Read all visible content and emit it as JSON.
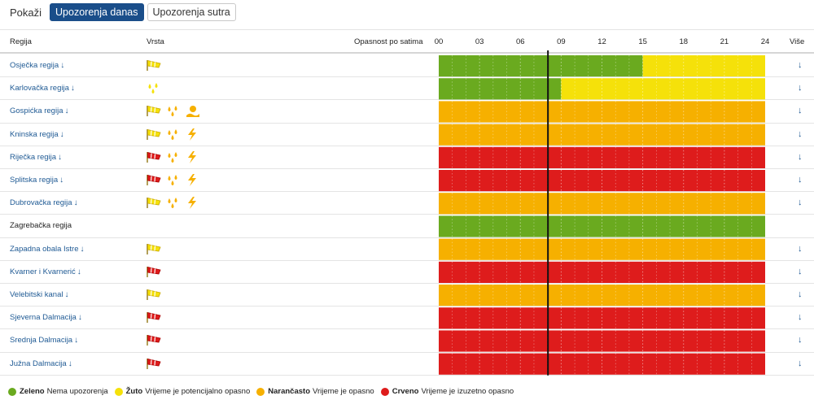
{
  "controls": {
    "show_label": "Pokaži",
    "tabs": [
      {
        "label": "Upozorenja danas",
        "active": true
      },
      {
        "label": "Upozorenja sutra",
        "active": false
      }
    ]
  },
  "header": {
    "region": "Regija",
    "type": "Vrsta",
    "hazard_by_hour": "Opasnost po satima",
    "more": "Više",
    "hour_ticks": [
      "00",
      "03",
      "06",
      "09",
      "12",
      "15",
      "18",
      "21",
      "24"
    ]
  },
  "colors": {
    "green": "#6aaa1f",
    "yellow": "#f5e10a",
    "orange": "#f6b000",
    "red": "#de1c1c",
    "link": "#1f5a94",
    "active_tab": "#1a4e8a"
  },
  "current_hour": 8,
  "rows": [
    {
      "name": "Osječka regija",
      "link": true,
      "icons": [
        "wind-yellow"
      ],
      "segments": [
        {
          "from": 0,
          "to": 15,
          "level": "green"
        },
        {
          "from": 15,
          "to": 24,
          "level": "yellow"
        }
      ]
    },
    {
      "name": "Karlovačka regija",
      "link": true,
      "icons": [
        "rain-yellow"
      ],
      "segments": [
        {
          "from": 0,
          "to": 9,
          "level": "green"
        },
        {
          "from": 9,
          "to": 24,
          "level": "yellow"
        }
      ]
    },
    {
      "name": "Gospićka regija",
      "link": true,
      "icons": [
        "wind-yellow",
        "rain-orange",
        "heat-orange"
      ],
      "segments": [
        {
          "from": 0,
          "to": 24,
          "level": "orange"
        }
      ]
    },
    {
      "name": "Kninska regija",
      "link": true,
      "icons": [
        "wind-yellow",
        "rain-orange",
        "thunder-orange"
      ],
      "segments": [
        {
          "from": 0,
          "to": 24,
          "level": "orange"
        }
      ]
    },
    {
      "name": "Riječka regija",
      "link": true,
      "icons": [
        "wind-red",
        "rain-orange",
        "thunder-orange"
      ],
      "segments": [
        {
          "from": 0,
          "to": 24,
          "level": "red"
        }
      ]
    },
    {
      "name": "Splitska regija",
      "link": true,
      "icons": [
        "wind-red",
        "rain-orange",
        "thunder-orange"
      ],
      "segments": [
        {
          "from": 0,
          "to": 24,
          "level": "red"
        }
      ]
    },
    {
      "name": "Dubrovačka regija",
      "link": true,
      "icons": [
        "wind-yellow",
        "rain-orange",
        "thunder-orange"
      ],
      "segments": [
        {
          "from": 0,
          "to": 24,
          "level": "orange"
        }
      ]
    },
    {
      "name": "Zagrebačka regija",
      "link": false,
      "icons": [],
      "segments": [
        {
          "from": 0,
          "to": 24,
          "level": "green"
        }
      ]
    },
    {
      "name": "Zapadna obala Istre",
      "link": true,
      "icons": [
        "wind-yellow"
      ],
      "segments": [
        {
          "from": 0,
          "to": 24,
          "level": "orange"
        }
      ]
    },
    {
      "name": "Kvarner i Kvarnerić",
      "link": true,
      "icons": [
        "wind-red"
      ],
      "segments": [
        {
          "from": 0,
          "to": 24,
          "level": "red"
        }
      ]
    },
    {
      "name": "Velebitski kanal",
      "link": true,
      "icons": [
        "wind-yellow"
      ],
      "segments": [
        {
          "from": 0,
          "to": 24,
          "level": "orange"
        }
      ]
    },
    {
      "name": "Sjeverna Dalmacija",
      "link": true,
      "icons": [
        "wind-red"
      ],
      "segments": [
        {
          "from": 0,
          "to": 24,
          "level": "red"
        }
      ]
    },
    {
      "name": "Srednja Dalmacija",
      "link": true,
      "icons": [
        "wind-red"
      ],
      "segments": [
        {
          "from": 0,
          "to": 24,
          "level": "red"
        }
      ]
    },
    {
      "name": "Južna Dalmacija",
      "link": true,
      "icons": [
        "wind-red"
      ],
      "segments": [
        {
          "from": 0,
          "to": 24,
          "level": "red"
        }
      ]
    }
  ],
  "legend": [
    {
      "level": "green",
      "title": "Zeleno",
      "desc": "Nema upozorenja"
    },
    {
      "level": "yellow",
      "title": "Žuto",
      "desc": "Vrijeme je potencijalno opasno"
    },
    {
      "level": "orange",
      "title": "Narančasto",
      "desc": "Vrijeme je opasno"
    },
    {
      "level": "red",
      "title": "Crveno",
      "desc": "Vrijeme je izuzetno opasno"
    }
  ]
}
